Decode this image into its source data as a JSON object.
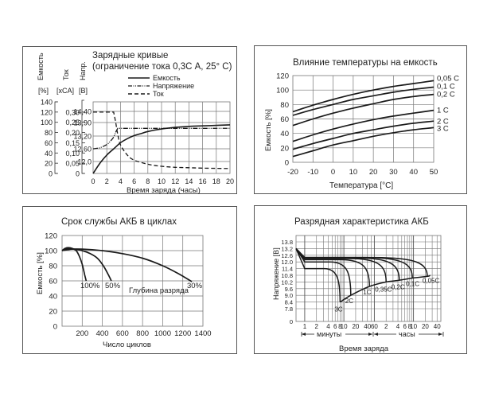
{
  "colors": {
    "line": "#1a1a1a",
    "grid": "#777777",
    "border": "#555555"
  },
  "chart_data": [
    {
      "type": "line",
      "title": "Зарядные кривые",
      "subtitle": "(ограничение тока 0,3С А, 25° С)",
      "xlabel": "Время заряда (часы)",
      "xlim": [
        0,
        20
      ],
      "x_ticks": [
        "0",
        "2",
        "4",
        "6",
        "8",
        "10",
        "12",
        "14",
        "16",
        "18",
        "20"
      ],
      "axes": [
        {
          "label": "Емкость",
          "unit": "[%]",
          "ticks": [
            "140",
            "120",
            "100",
            "80",
            "60",
            "40",
            "20",
            "0"
          ],
          "ylim": [
            0,
            140
          ]
        },
        {
          "label": "Ток",
          "unit": "[xCA]",
          "ticks": [
            "0,30",
            "0,25",
            "0,20",
            "0,15",
            "0,10",
            "0,05",
            "0"
          ],
          "ylim": [
            0,
            0.35
          ]
        },
        {
          "label": "Напр.",
          "unit": "[B]",
          "ticks": [
            "14,40",
            "13,90",
            "13,20",
            "12,60",
            "12,0"
          ]
        }
      ],
      "legend": [
        "Емкость",
        "Напряжение",
        "Ток"
      ],
      "legend_position": "top-right",
      "series": [
        {
          "name": "Емкость",
          "style": "solid",
          "axis": 0,
          "x": [
            0,
            1,
            2,
            3,
            4,
            5,
            6,
            7,
            8,
            10,
            12,
            14,
            16,
            18,
            20
          ],
          "y": [
            0,
            20,
            36,
            48,
            60,
            68,
            74,
            78,
            82,
            87,
            90,
            92,
            93,
            94,
            95
          ]
        },
        {
          "name": "Напряжение",
          "style": "dashdot",
          "axis": 2,
          "x": [
            0,
            1,
            2,
            2.5,
            3,
            3.3,
            3.6,
            4,
            6,
            8,
            10,
            12,
            14,
            16,
            18,
            20
          ],
          "y": [
            12.6,
            12.65,
            12.8,
            12.95,
            13.15,
            13.4,
            13.6,
            13.6,
            13.6,
            13.6,
            13.6,
            13.6,
            13.6,
            13.6,
            13.6,
            13.6
          ]
        },
        {
          "name": "Ток",
          "style": "dashed",
          "axis": 1,
          "x": [
            0,
            1,
            2,
            3,
            3.3,
            3.6,
            4,
            5,
            6,
            8,
            10,
            12,
            14,
            16,
            18,
            20
          ],
          "y": [
            0.3,
            0.3,
            0.3,
            0.3,
            0.25,
            0.19,
            0.14,
            0.09,
            0.065,
            0.045,
            0.035,
            0.03,
            0.028,
            0.026,
            0.025,
            0.024
          ]
        }
      ]
    },
    {
      "type": "line",
      "title": "Влияние температуры на емкость",
      "xlabel": "Температура [°C]",
      "ylabel": "Емкость [%]",
      "xlim": [
        -20,
        50
      ],
      "ylim": [
        0,
        120
      ],
      "x_ticks": [
        "-20",
        "-10",
        "0",
        "10",
        "20",
        "30",
        "40",
        "50"
      ],
      "y_ticks": [
        "120",
        "100",
        "80",
        "60",
        "40",
        "20",
        "0"
      ],
      "grid": true,
      "series": [
        {
          "name": "0,05 C",
          "x": [
            -20,
            -10,
            0,
            10,
            20,
            30,
            40,
            50
          ],
          "y": [
            70,
            79,
            87,
            94,
            100,
            105,
            109,
            113
          ]
        },
        {
          "name": "0,1 C",
          "x": [
            -20,
            -10,
            0,
            10,
            20,
            30,
            40,
            50
          ],
          "y": [
            65,
            73,
            80,
            87,
            92,
            97,
            101,
            104
          ]
        },
        {
          "name": "0,2 C",
          "x": [
            -20,
            -10,
            0,
            10,
            20,
            30,
            40,
            50
          ],
          "y": [
            51,
            60,
            68,
            75,
            81,
            87,
            91,
            94
          ]
        },
        {
          "name": "1 С",
          "x": [
            -20,
            -10,
            0,
            10,
            20,
            30,
            40,
            50
          ],
          "y": [
            29,
            38,
            46,
            53,
            59,
            64,
            68,
            72
          ]
        },
        {
          "name": "2 С",
          "x": [
            -20,
            -10,
            0,
            10,
            20,
            30,
            40,
            50
          ],
          "y": [
            18,
            26,
            33,
            40,
            45,
            50,
            54,
            57
          ]
        },
        {
          "name": "3 С",
          "x": [
            -20,
            -10,
            0,
            10,
            20,
            30,
            40,
            50
          ],
          "y": [
            8,
            16,
            24,
            30,
            36,
            41,
            45,
            48
          ]
        }
      ]
    },
    {
      "type": "line",
      "title": "Срок службы АКБ в циклах",
      "xlabel": "Число циклов",
      "ylabel": "Емкость [%]",
      "xlim": [
        0,
        1400
      ],
      "ylim": [
        0,
        120
      ],
      "x_ticks": [
        "200",
        "400",
        "600",
        "800",
        "1000",
        "1200",
        "1400"
      ],
      "y_ticks": [
        "120",
        "100",
        "80",
        "60",
        "40",
        "20",
        "0"
      ],
      "x_origin_label": "0",
      "grid": true,
      "annotation": "Глубина разряда",
      "series": [
        {
          "name": "100%",
          "x": [
            0,
            30,
            60,
            100,
            140,
            170,
            200,
            225,
            240
          ],
          "y": [
            100,
            103,
            104,
            103,
            100,
            93,
            82,
            68,
            60
          ]
        },
        {
          "name": "50%",
          "x": [
            0,
            60,
            120,
            200,
            280,
            350,
            410,
            460,
            490
          ],
          "y": [
            100,
            103,
            102,
            100,
            96,
            90,
            80,
            68,
            60
          ]
        },
        {
          "name": "30%",
          "x": [
            0,
            100,
            200,
            400,
            600,
            800,
            1000,
            1150,
            1290
          ],
          "y": [
            100,
            102,
            102,
            100,
            96,
            90,
            80,
            70,
            59
          ]
        }
      ]
    },
    {
      "type": "line",
      "title": "Разрядная характеристика АКБ",
      "xlabel": "Время заряда",
      "ylabel": "Напряжение [B]",
      "x_scale": "log",
      "x_ticks_minutes": [
        "1",
        "2",
        "4",
        "6",
        "8",
        "10",
        "20",
        "40",
        "60"
      ],
      "x_ticks_hours": [
        "2",
        "4",
        "6",
        "8",
        "10",
        "20",
        "40"
      ],
      "x_range_labels": {
        "minutes": "минуты",
        "hours": "часы"
      },
      "y_ticks": [
        "13.8",
        "13.2",
        "12.6",
        "12.0",
        "11.4",
        "10.8",
        "10.2",
        "9.6",
        "9.0",
        "8.4",
        "7.8",
        "0"
      ],
      "grid": true,
      "series": [
        {
          "name": "3C"
        },
        {
          "name": "2C"
        },
        {
          "name": "1C"
        },
        {
          "name": "0,35C"
        },
        {
          "name": "0,2C"
        },
        {
          "name": "0,1C"
        },
        {
          "name": "0,05C"
        }
      ]
    }
  ]
}
